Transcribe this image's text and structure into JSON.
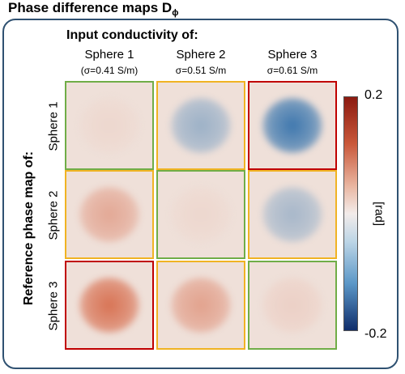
{
  "title": "Phase difference maps D",
  "title_subscript": "ϕ",
  "input_heading": "Input conductivity of:",
  "reference_heading": "Reference phase map of:",
  "columns": [
    {
      "name": "Sphere 1",
      "sigma": "(σ=0.41 S/m)"
    },
    {
      "name": "Sphere 2",
      "sigma": "σ=0.51 S/m"
    },
    {
      "name": "Sphere 3",
      "sigma": "σ=0.61 S/m"
    }
  ],
  "rows": [
    "Sphere 1",
    "Sphere 2",
    "Sphere 3"
  ],
  "colorbar": {
    "max": "0.2",
    "min": "-0.2",
    "unit": "[rad]"
  },
  "colors": {
    "frame": "#2f5171",
    "border_green": "#70ad47",
    "border_yellow": "#f0b323",
    "border_red": "#c00000",
    "background": "#efe0d9"
  },
  "cells": [
    {
      "row": 0,
      "col": 0,
      "border": "green",
      "value": 0.02
    },
    {
      "row": 0,
      "col": 1,
      "border": "yellow",
      "value": -0.08
    },
    {
      "row": 0,
      "col": 2,
      "border": "red",
      "value": -0.17
    },
    {
      "row": 1,
      "col": 0,
      "border": "yellow",
      "value": 0.09
    },
    {
      "row": 1,
      "col": 1,
      "border": "green",
      "value": 0.02
    },
    {
      "row": 1,
      "col": 2,
      "border": "yellow",
      "value": -0.07
    },
    {
      "row": 2,
      "col": 0,
      "border": "red",
      "value": 0.17
    },
    {
      "row": 2,
      "col": 1,
      "border": "yellow",
      "value": 0.1
    },
    {
      "row": 2,
      "col": 2,
      "border": "green",
      "value": 0.03
    }
  ]
}
